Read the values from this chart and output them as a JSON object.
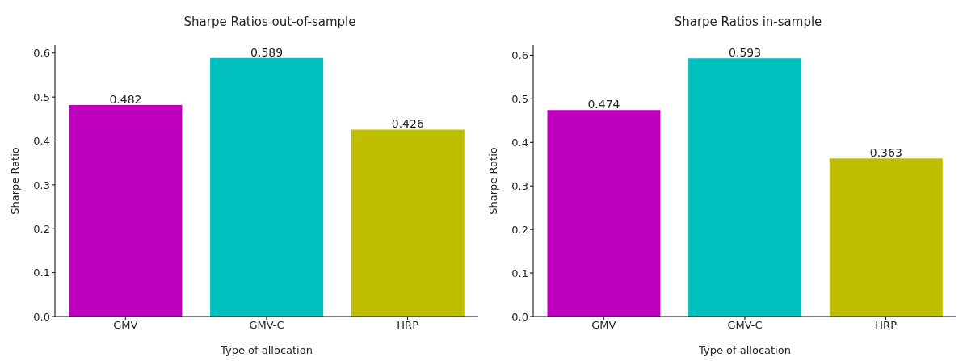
{
  "chart_data": [
    {
      "type": "bar",
      "title": "Sharpe Ratios out-of-sample",
      "xlabel": "Type of allocation",
      "ylabel": "Sharpe Ratio",
      "categories": [
        "GMV",
        "GMV-C",
        "HRP"
      ],
      "values": [
        0.482,
        0.589,
        0.426
      ],
      "colors": [
        "#bf00bf",
        "#00bfbf",
        "#bfbf00"
      ],
      "ylim": [
        0,
        0.618
      ],
      "yticks": [
        {
          "value": 0,
          "label": "0.0"
        },
        {
          "value": 0.1,
          "label": "0.1"
        },
        {
          "value": 0.2,
          "label": "0.2"
        },
        {
          "value": 0.3,
          "label": "0.3"
        },
        {
          "value": 0.4,
          "label": "0.4"
        },
        {
          "value": 0.5,
          "label": "0.5"
        },
        {
          "value": 0.6,
          "label": "0.6"
        }
      ],
      "data_labels": true
    },
    {
      "type": "bar",
      "title": "Sharpe Ratios in-sample",
      "xlabel": "Type of allocation",
      "ylabel": "Sharpe Ratio",
      "categories": [
        "GMV",
        "GMV-C",
        "HRP"
      ],
      "values": [
        0.474,
        0.593,
        0.363
      ],
      "colors": [
        "#bf00bf",
        "#00bfbf",
        "#bfbf00"
      ],
      "ylim": [
        0,
        0.623
      ],
      "yticks": [
        {
          "value": 0,
          "label": "0.0"
        },
        {
          "value": 0.1,
          "label": "0.1"
        },
        {
          "value": 0.2,
          "label": "0.2"
        },
        {
          "value": 0.3,
          "label": "0.3"
        },
        {
          "value": 0.4,
          "label": "0.4"
        },
        {
          "value": 0.5,
          "label": "0.5"
        },
        {
          "value": 0.6,
          "label": "0.6"
        }
      ],
      "data_labels": true
    }
  ]
}
